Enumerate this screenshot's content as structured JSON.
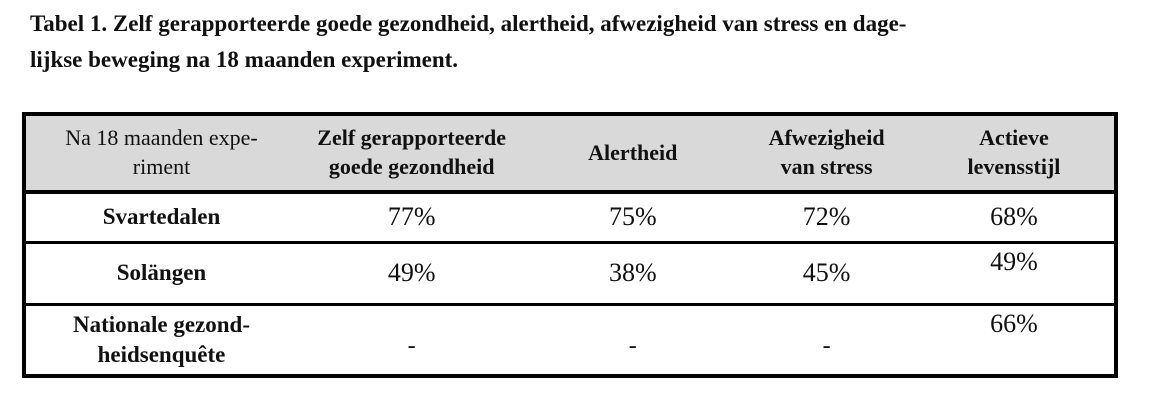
{
  "page": {
    "background_color": "#ffffff",
    "text_color": "#111111",
    "border_color": "#000000",
    "header_bg_color": "#d9d9d9"
  },
  "caption": {
    "text": "Tabel 1. Zelf gerapporteerde goede gezondheid, alertheid, afwezigheid van stress en dage-\nlijkse beweging na 18 maanden experiment."
  },
  "table": {
    "columns": [
      {
        "label": "Na 18 maanden expe-\nriment"
      },
      {
        "label": "Zelf gerapporteerde\ngoede gezondheid"
      },
      {
        "label": "Alertheid"
      },
      {
        "label": "Afwezigheid\nvan stress"
      },
      {
        "label": "Actieve\nlevensstijl"
      }
    ],
    "rows": [
      {
        "label": "Svartedalen",
        "values": [
          "77%",
          "75%",
          "72%",
          "68%"
        ]
      },
      {
        "label": "Solängen",
        "values": [
          "49%",
          "38%",
          "45%",
          "49%"
        ]
      },
      {
        "label": "Nationale gezond-\nheidsenquête",
        "values": [
          "-",
          "-",
          "-",
          "66%"
        ]
      }
    ]
  }
}
